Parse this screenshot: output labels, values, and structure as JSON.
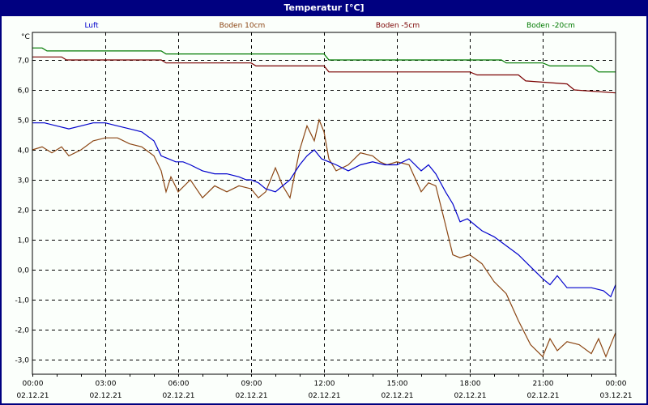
{
  "window": {
    "title": "Temperatur [°C]"
  },
  "colors": {
    "titlebar": "#000080",
    "background": "#fbfffb",
    "luft": "#0000cc",
    "boden10": "#8b4513",
    "boden5": "#7a0000",
    "boden20": "#007a00",
    "grid": "#000000"
  },
  "chart_data": {
    "type": "line",
    "title": "Temperatur [°C]",
    "ylabel": "°C",
    "xlabel": "",
    "ylim": [
      -3.4,
      7.8
    ],
    "grid": true,
    "legend_position": "top",
    "yticks": [
      "7,0",
      "6,0",
      "5,0",
      "4,0",
      "3,0",
      "2,0",
      "1,0",
      "0,0",
      "-1,0",
      "-2,0",
      "-3,0"
    ],
    "ytick_values": [
      7,
      6,
      5,
      4,
      3,
      2,
      1,
      0,
      -1,
      -2,
      -3
    ],
    "xticks": [
      {
        "time": "00:00",
        "date": "02.12.21"
      },
      {
        "time": "03:00",
        "date": "02.12.21"
      },
      {
        "time": "06:00",
        "date": "02.12.21"
      },
      {
        "time": "09:00",
        "date": "02.12.21"
      },
      {
        "time": "12:00",
        "date": "02.12.21"
      },
      {
        "time": "15:00",
        "date": "02.12.21"
      },
      {
        "time": "18:00",
        "date": "02.12.21"
      },
      {
        "time": "21:00",
        "date": "02.12.21"
      },
      {
        "time": "00:00",
        "date": "03.12.21"
      }
    ],
    "series": [
      {
        "name": "Luft",
        "color": "#0000cc",
        "x": [
          0,
          0.5,
          1,
          1.5,
          2,
          2.5,
          3,
          3.5,
          4,
          4.5,
          5,
          5.3,
          5.6,
          5.9,
          6.2,
          6.5,
          7,
          7.5,
          8,
          8.5,
          8.8,
          9,
          9.3,
          9.6,
          10,
          10.3,
          10.6,
          11,
          11.3,
          11.6,
          11.9,
          12.2,
          12.5,
          13,
          13.5,
          14,
          14.5,
          15,
          15.5,
          16,
          16.3,
          16.6,
          17,
          17.3,
          17.6,
          17.9,
          18.2,
          18.5,
          19,
          19.5,
          20,
          20.5,
          21,
          21.3,
          21.6,
          22,
          22.5,
          23,
          23.5,
          23.8,
          24
        ],
        "values": [
          4.9,
          4.9,
          4.8,
          4.7,
          4.8,
          4.9,
          4.9,
          4.8,
          4.7,
          4.6,
          4.3,
          3.8,
          3.7,
          3.6,
          3.6,
          3.5,
          3.3,
          3.2,
          3.2,
          3.1,
          3.0,
          3.0,
          2.9,
          2.7,
          2.6,
          2.8,
          3.0,
          3.5,
          3.8,
          4.0,
          3.7,
          3.6,
          3.5,
          3.3,
          3.5,
          3.6,
          3.5,
          3.5,
          3.7,
          3.3,
          3.5,
          3.2,
          2.6,
          2.2,
          1.6,
          1.7,
          1.5,
          1.3,
          1.1,
          0.8,
          0.5,
          0.1,
          -0.3,
          -0.5,
          -0.2,
          -0.6,
          -0.6,
          -0.6,
          -0.7,
          -0.9,
          -0.5
        ]
      },
      {
        "name": "Boden 10cm",
        "color": "#8b4513",
        "x": [
          0,
          0.4,
          0.8,
          1.2,
          1.5,
          2,
          2.5,
          3,
          3.5,
          4,
          4.5,
          5,
          5.3,
          5.5,
          5.7,
          6,
          6.5,
          7,
          7.5,
          8,
          8.5,
          9,
          9.3,
          9.6,
          10,
          10.3,
          10.6,
          11,
          11.3,
          11.6,
          11.8,
          12,
          12.2,
          12.5,
          13,
          13.5,
          14,
          14.3,
          14.6,
          15,
          15.5,
          16,
          16.3,
          16.6,
          17,
          17.3,
          17.6,
          18,
          18.5,
          19,
          19.5,
          20,
          20.5,
          21,
          21.3,
          21.6,
          22,
          22.5,
          23,
          23.3,
          23.6,
          24
        ],
        "values": [
          4.0,
          4.1,
          3.9,
          4.1,
          3.8,
          4.0,
          4.3,
          4.4,
          4.4,
          4.2,
          4.1,
          3.8,
          3.3,
          2.6,
          3.1,
          2.6,
          3.0,
          2.4,
          2.8,
          2.6,
          2.8,
          2.7,
          2.4,
          2.6,
          3.4,
          2.8,
          2.4,
          4.0,
          4.8,
          4.3,
          5.0,
          4.6,
          3.7,
          3.3,
          3.5,
          3.9,
          3.8,
          3.6,
          3.5,
          3.6,
          3.5,
          2.6,
          2.9,
          2.8,
          1.5,
          0.5,
          0.4,
          0.5,
          0.2,
          -0.4,
          -0.8,
          -1.7,
          -2.5,
          -2.9,
          -2.3,
          -2.7,
          -2.4,
          -2.5,
          -2.8,
          -2.3,
          -2.9,
          -2.1
        ]
      },
      {
        "name": "Boden -5cm",
        "color": "#7a0000",
        "x": [
          0,
          1.2,
          1.4,
          5.3,
          5.5,
          9,
          9.2,
          12,
          12.2,
          18,
          18.3,
          20,
          20.3,
          22,
          22.3,
          24
        ],
        "values": [
          7.1,
          7.1,
          7.0,
          7.0,
          6.9,
          6.9,
          6.8,
          6.8,
          6.6,
          6.6,
          6.5,
          6.5,
          6.3,
          6.2,
          6.0,
          5.9
        ]
      },
      {
        "name": "Boden -20cm",
        "color": "#007a00",
        "x": [
          0,
          0.4,
          0.6,
          5.3,
          5.5,
          12,
          12.2,
          19.3,
          19.5,
          21,
          21.3,
          23,
          23.3,
          24
        ],
        "values": [
          7.4,
          7.4,
          7.3,
          7.3,
          7.2,
          7.2,
          7.0,
          7.0,
          6.9,
          6.9,
          6.8,
          6.8,
          6.6,
          6.6
        ]
      }
    ]
  }
}
